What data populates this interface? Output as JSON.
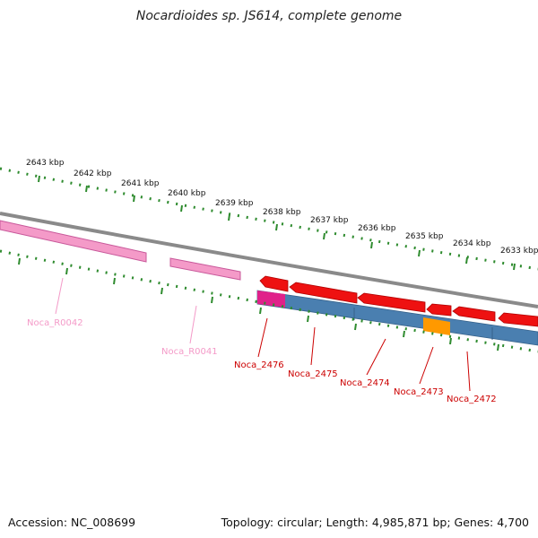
{
  "title": "Nocardioides sp. JS614, complete genome",
  "footer": {
    "accession": "Accession: NC_008699",
    "summary": "Topology: circular; Length: 4,985,871 bp; Genes: 4,700"
  },
  "colors": {
    "backbone": "#8a8a8a",
    "tick": "#2e8b2e",
    "gene": "#ee1111",
    "rna": "#f49ac8",
    "rna_dark": "#c8589a",
    "cds_bar": "#4a7fb0",
    "highlight_magenta": "#e0218a",
    "highlight_orange": "#ff9900"
  },
  "kbp_labels": [
    "2643 kbp",
    "2642 kbp",
    "2641 kbp",
    "2640 kbp",
    "2639 kbp",
    "2638 kbp",
    "2637 kbp",
    "2636 kbp",
    "2635 kbp",
    "2634 kbp",
    "2633 kbp"
  ],
  "gene_labels": [
    {
      "text": "Noca_R0042",
      "color": "#f49ac8"
    },
    {
      "text": "Noca_R0041",
      "color": "#f49ac8"
    },
    {
      "text": "Noca_2476",
      "color": "#cc0000"
    },
    {
      "text": "Noca_2475",
      "color": "#cc0000"
    },
    {
      "text": "Noca_2474",
      "color": "#cc0000"
    },
    {
      "text": "Noca_2473",
      "color": "#cc0000"
    },
    {
      "text": "Noca_2472",
      "color": "#cc0000"
    }
  ]
}
